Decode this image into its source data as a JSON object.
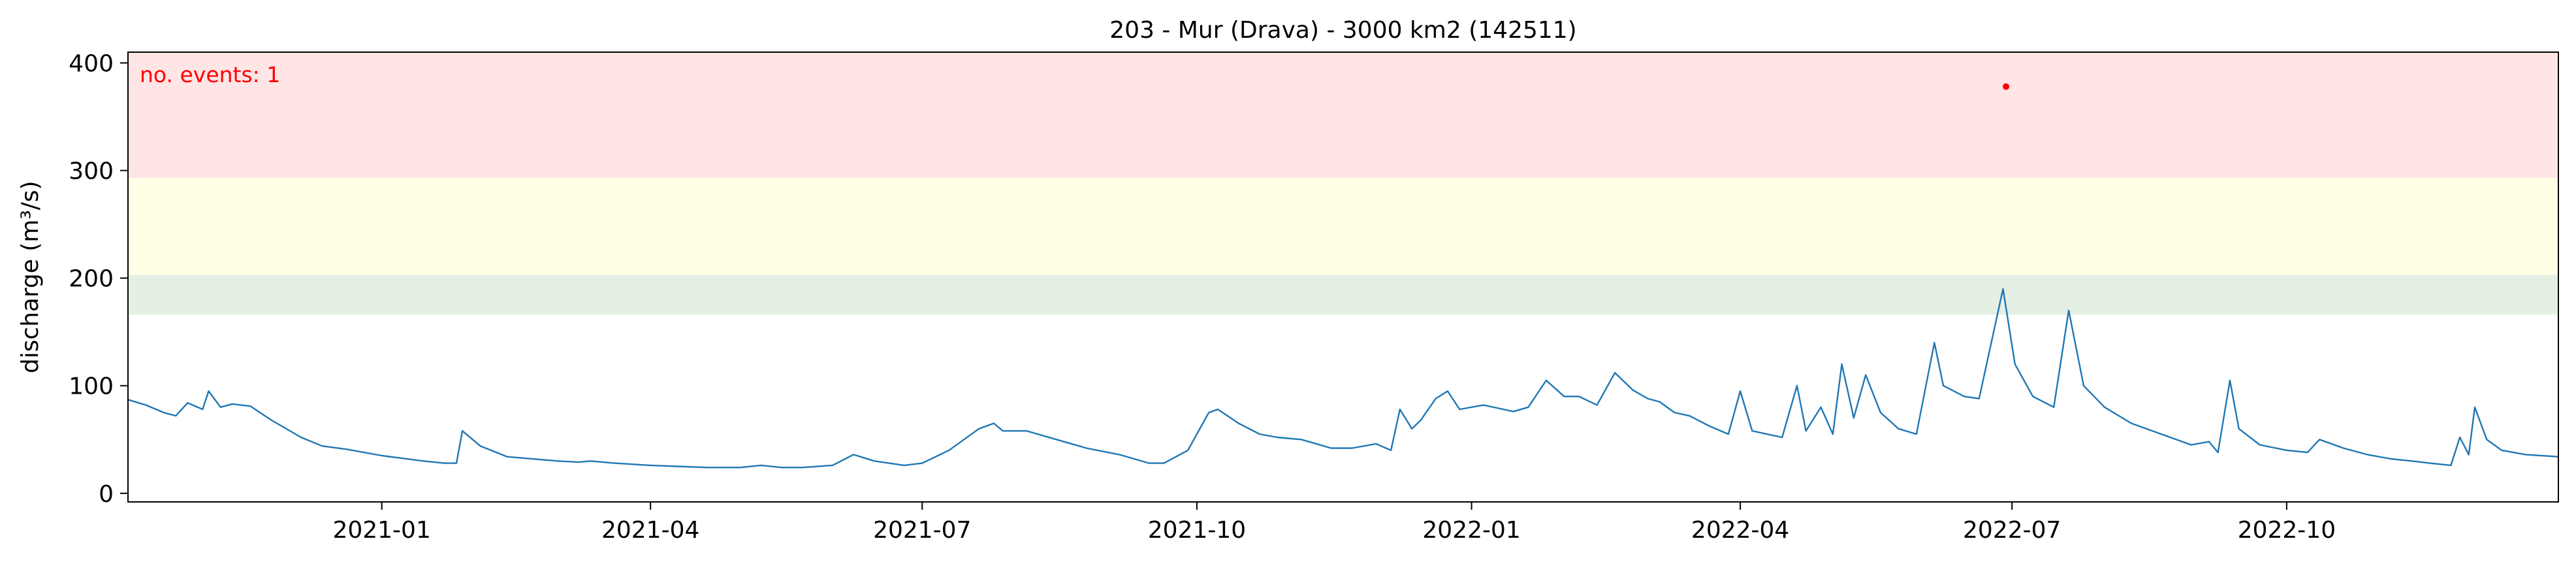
{
  "chart_data": {
    "type": "line",
    "title": "203 - Mur (Drava) - 3000 km2 (142511)",
    "xlabel": "",
    "ylabel": "discharge (m³/s)",
    "xlim": [
      "2020-10-08",
      "2022-12-31"
    ],
    "ylim": [
      -8,
      410
    ],
    "x_ticks": [
      "2021-01-01",
      "2021-04-01",
      "2021-07-01",
      "2021-10-01",
      "2022-01-01",
      "2022-04-01",
      "2022-07-01",
      "2022-10-01"
    ],
    "x_tick_labels": [
      "2021-01",
      "2021-04",
      "2021-07",
      "2021-10",
      "2022-01",
      "2022-04",
      "2022-07",
      "2022-10"
    ],
    "y_ticks": [
      0,
      100,
      200,
      300,
      400
    ],
    "y_tick_labels": [
      "0",
      "100",
      "200",
      "300",
      "400"
    ],
    "threshold_bands": [
      {
        "from": 166,
        "to": 203,
        "color": "#e5f0e5"
      },
      {
        "from": 203,
        "to": 293,
        "color": "#ffffe5"
      },
      {
        "from": 293,
        "to": 410,
        "color": "#ffe5e5"
      }
    ],
    "annotation": "no. events: 1",
    "line_color": "#1f77b4",
    "series": [
      {
        "points": [
          [
            "2020-10-08",
            87
          ],
          [
            "2020-10-14",
            82
          ],
          [
            "2020-10-20",
            75
          ],
          [
            "2020-10-24",
            72
          ],
          [
            "2020-10-28",
            84
          ],
          [
            "2020-11-02",
            78
          ],
          [
            "2020-11-04",
            95
          ],
          [
            "2020-11-08",
            80
          ],
          [
            "2020-11-12",
            83
          ],
          [
            "2020-11-18",
            81
          ],
          [
            "2020-11-25",
            68
          ],
          [
            "2020-12-05",
            52
          ],
          [
            "2020-12-12",
            44
          ],
          [
            "2020-12-20",
            41
          ],
          [
            "2021-01-01",
            35
          ],
          [
            "2021-01-15",
            30
          ],
          [
            "2021-01-22",
            28
          ],
          [
            "2021-01-26",
            28
          ],
          [
            "2021-01-28",
            58
          ],
          [
            "2021-02-03",
            44
          ],
          [
            "2021-02-12",
            34
          ],
          [
            "2021-03-01",
            30
          ],
          [
            "2021-03-08",
            29
          ],
          [
            "2021-03-12",
            30
          ],
          [
            "2021-03-20",
            28
          ],
          [
            "2021-04-01",
            26
          ],
          [
            "2021-04-10",
            25
          ],
          [
            "2021-04-20",
            24
          ],
          [
            "2021-05-01",
            24
          ],
          [
            "2021-05-08",
            26
          ],
          [
            "2021-05-15",
            24
          ],
          [
            "2021-05-22",
            24
          ],
          [
            "2021-06-01",
            26
          ],
          [
            "2021-06-08",
            36
          ],
          [
            "2021-06-15",
            30
          ],
          [
            "2021-06-25",
            26
          ],
          [
            "2021-07-01",
            28
          ],
          [
            "2021-07-10",
            40
          ],
          [
            "2021-07-20",
            60
          ],
          [
            "2021-07-25",
            65
          ],
          [
            "2021-07-28",
            58
          ],
          [
            "2021-08-05",
            58
          ],
          [
            "2021-08-15",
            50
          ],
          [
            "2021-08-25",
            42
          ],
          [
            "2021-09-05",
            36
          ],
          [
            "2021-09-15",
            28
          ],
          [
            "2021-09-20",
            28
          ],
          [
            "2021-09-28",
            40
          ],
          [
            "2021-10-05",
            75
          ],
          [
            "2021-10-08",
            78
          ],
          [
            "2021-10-15",
            65
          ],
          [
            "2021-10-22",
            55
          ],
          [
            "2021-10-28",
            52
          ],
          [
            "2021-11-05",
            50
          ],
          [
            "2021-11-15",
            42
          ],
          [
            "2021-11-22",
            42
          ],
          [
            "2021-11-30",
            46
          ],
          [
            "2021-12-05",
            40
          ],
          [
            "2021-12-08",
            78
          ],
          [
            "2021-12-12",
            60
          ],
          [
            "2021-12-15",
            68
          ],
          [
            "2021-12-20",
            88
          ],
          [
            "2021-12-24",
            95
          ],
          [
            "2021-12-28",
            78
          ],
          [
            "2022-01-05",
            82
          ],
          [
            "2022-01-15",
            76
          ],
          [
            "2022-01-20",
            80
          ],
          [
            "2022-01-26",
            105
          ],
          [
            "2022-02-01",
            90
          ],
          [
            "2022-02-06",
            90
          ],
          [
            "2022-02-12",
            82
          ],
          [
            "2022-02-18",
            112
          ],
          [
            "2022-02-24",
            96
          ],
          [
            "2022-03-01",
            88
          ],
          [
            "2022-03-05",
            85
          ],
          [
            "2022-03-10",
            75
          ],
          [
            "2022-03-15",
            72
          ],
          [
            "2022-03-22",
            62
          ],
          [
            "2022-03-28",
            55
          ],
          [
            "2022-04-01",
            95
          ],
          [
            "2022-04-05",
            58
          ],
          [
            "2022-04-15",
            52
          ],
          [
            "2022-04-20",
            100
          ],
          [
            "2022-04-23",
            58
          ],
          [
            "2022-04-28",
            80
          ],
          [
            "2022-05-02",
            55
          ],
          [
            "2022-05-05",
            120
          ],
          [
            "2022-05-09",
            70
          ],
          [
            "2022-05-13",
            110
          ],
          [
            "2022-05-18",
            75
          ],
          [
            "2022-05-24",
            60
          ],
          [
            "2022-05-30",
            55
          ],
          [
            "2022-06-05",
            140
          ],
          [
            "2022-06-08",
            100
          ],
          [
            "2022-06-15",
            90
          ],
          [
            "2022-06-20",
            88
          ],
          [
            "2022-06-28",
            190
          ],
          [
            "2022-07-02",
            120
          ],
          [
            "2022-07-08",
            90
          ],
          [
            "2022-07-15",
            80
          ],
          [
            "2022-07-20",
            170
          ],
          [
            "2022-07-25",
            100
          ],
          [
            "2022-08-01",
            80
          ],
          [
            "2022-08-10",
            65
          ],
          [
            "2022-08-20",
            55
          ],
          [
            "2022-08-30",
            45
          ],
          [
            "2022-09-05",
            48
          ],
          [
            "2022-09-08",
            38
          ],
          [
            "2022-09-12",
            105
          ],
          [
            "2022-09-15",
            60
          ],
          [
            "2022-09-22",
            45
          ],
          [
            "2022-10-01",
            40
          ],
          [
            "2022-10-08",
            38
          ],
          [
            "2022-10-12",
            50
          ],
          [
            "2022-10-20",
            42
          ],
          [
            "2022-10-28",
            36
          ],
          [
            "2022-11-05",
            32
          ],
          [
            "2022-11-12",
            30
          ],
          [
            "2022-11-18",
            28
          ],
          [
            "2022-11-25",
            26
          ],
          [
            "2022-11-28",
            52
          ],
          [
            "2022-12-01",
            36
          ],
          [
            "2022-12-03",
            80
          ],
          [
            "2022-12-07",
            50
          ],
          [
            "2022-12-12",
            40
          ],
          [
            "2022-12-20",
            36
          ],
          [
            "2022-12-31",
            34
          ]
        ]
      }
    ],
    "events": [
      [
        "2022-06-29",
        378
      ]
    ]
  }
}
